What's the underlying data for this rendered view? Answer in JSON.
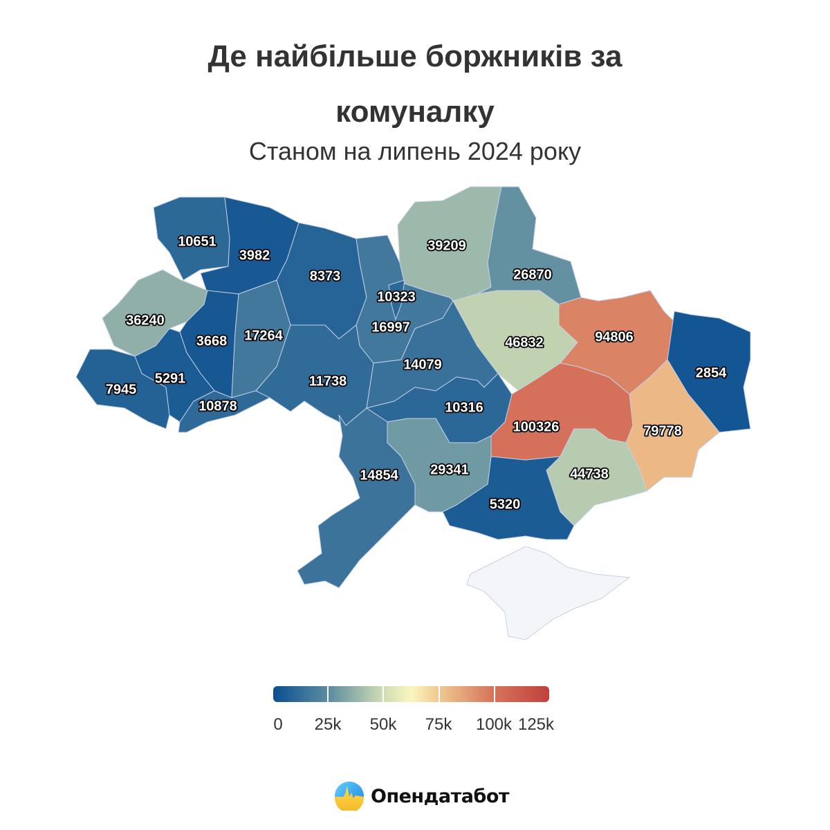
{
  "title": "Де найбільше боржників за комуналку",
  "subtitle": "Станом на липень 2024 року",
  "map": {
    "type": "choropleth",
    "no_data_color": "#f4f5f8",
    "border_color": "#c6d0e6",
    "regions": [
      {
        "value": 10651
      },
      {
        "value": 3982
      },
      {
        "value": 8373
      },
      {
        "value": 16997
      },
      {
        "value": 10323
      },
      {
        "value": 39209
      },
      {
        "value": 26870
      },
      {
        "value": 36240
      },
      {
        "value": 3668
      },
      {
        "value": 17264
      },
      {
        "value": 7945
      },
      {
        "value": 5291
      },
      {
        "value": 10878
      },
      {
        "value": 11738
      },
      {
        "value": 14079
      },
      {
        "value": 46832
      },
      {
        "value": 94806
      },
      {
        "value": 2854
      },
      {
        "value": 79778
      },
      {
        "value": 100326
      },
      {
        "value": 10316
      },
      {
        "value": 44738
      },
      {
        "value": 5320
      },
      {
        "value": 29341
      },
      {
        "value": 14854
      },
      {
        "value": null
      }
    ]
  },
  "legend": {
    "min": 0,
    "max": 125000,
    "tick_labels": [
      "0",
      "25k",
      "50k",
      "75k",
      "100k",
      "125k"
    ],
    "color_stops": [
      {
        "value": 0,
        "color": "#0b4f91"
      },
      {
        "value": 25000,
        "color": "#5b8ba0"
      },
      {
        "value": 50000,
        "color": "#d0dcb4"
      },
      {
        "value": 62500,
        "color": "#fbf6c0"
      },
      {
        "value": 75000,
        "color": "#f0c890"
      },
      {
        "value": 100000,
        "color": "#d5725a"
      },
      {
        "value": 125000,
        "color": "#c0413a"
      }
    ]
  },
  "brand": {
    "name": "Опендатабот"
  }
}
